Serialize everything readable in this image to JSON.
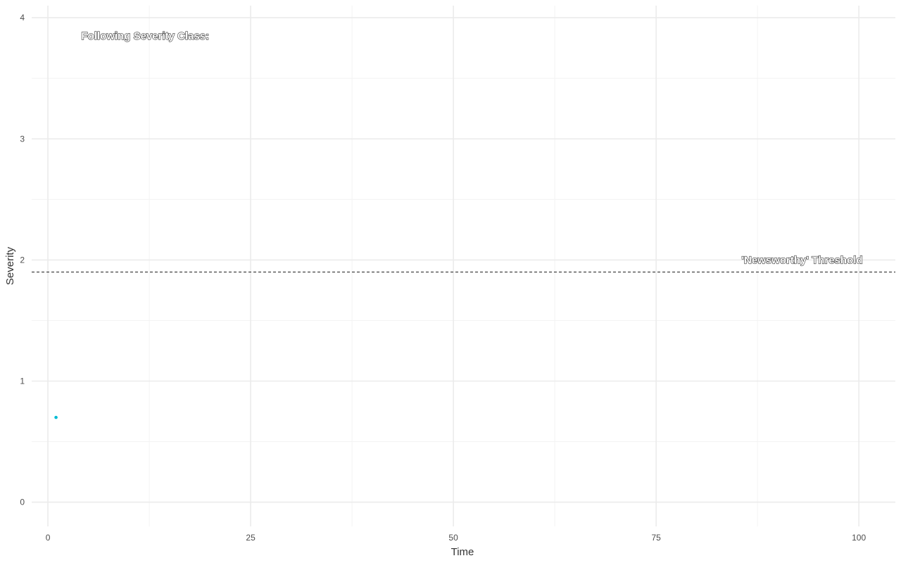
{
  "chart_data": {
    "type": "scatter",
    "title": "",
    "xlabel": "Time",
    "ylabel": "Severity",
    "xlim": [
      -2,
      104.5
    ],
    "ylim": [
      -0.2,
      4.1
    ],
    "x_ticks": [
      0,
      25,
      50,
      75,
      100
    ],
    "y_ticks": [
      0,
      1,
      2,
      3,
      4
    ],
    "x_tick_labels": [
      "0",
      "25",
      "50",
      "75",
      "100"
    ],
    "y_tick_labels": [
      "0",
      "1",
      "2",
      "3",
      "4"
    ],
    "grid": true,
    "series": [
      {
        "color": "#00bcd4",
        "points": [
          {
            "x": 1,
            "y": 0.7
          }
        ]
      }
    ],
    "threshold": {
      "y": 1.9,
      "label": "'Newsworthy' Threshold",
      "style": "dashed",
      "color": "#333333"
    },
    "annotations": [
      {
        "text": "Following Severity Class:",
        "x": 12,
        "y": 3.85
      },
      {
        "text": "'Newsworthy' Threshold",
        "x": 93,
        "y": 2.0
      }
    ]
  }
}
